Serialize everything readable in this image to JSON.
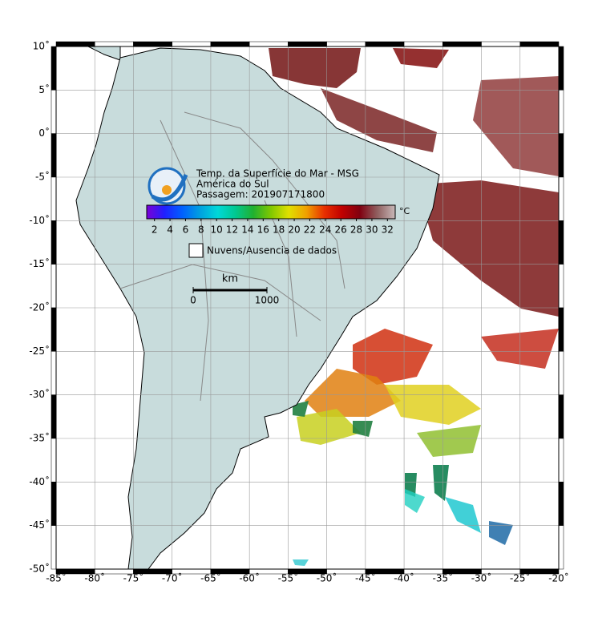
{
  "map": {
    "title_lines": [
      "Temp. da Superfície do Mar - MSG",
      "América do Sul",
      "Passagem: 201907171800"
    ],
    "colorbar": {
      "unit": "°C",
      "lim": [
        1,
        33
      ],
      "ticks": [
        2,
        4,
        6,
        8,
        10,
        12,
        14,
        16,
        18,
        20,
        22,
        24,
        26,
        28,
        30,
        32
      ],
      "colors": [
        "#7a00d6",
        "#2020ff",
        "#0060ff",
        "#00a0e0",
        "#00d8d8",
        "#00c890",
        "#20b030",
        "#80c800",
        "#e0e000",
        "#f0a000",
        "#e83000",
        "#c00000",
        "#800010",
        "#906060",
        "#c8b8b8"
      ]
    },
    "legend": "Nuvens/Ausencia de dados",
    "scale": {
      "unit": "km",
      "ticks": [
        0,
        1000
      ]
    },
    "lon_lim": [
      -85,
      -20
    ],
    "lat_lim": [
      -50,
      10
    ],
    "lon_ticks": [
      {
        "value": -85,
        "label": "-85˚"
      },
      {
        "value": -80,
        "label": "-80˚"
      },
      {
        "value": -75,
        "label": "-75˚"
      },
      {
        "value": -70,
        "label": "-70˚"
      },
      {
        "value": -65,
        "label": "-65˚"
      },
      {
        "value": -60,
        "label": "-60˚"
      },
      {
        "value": -55,
        "label": "-55˚"
      },
      {
        "value": -50,
        "label": "-50˚"
      },
      {
        "value": -45,
        "label": "-45˚"
      },
      {
        "value": -40,
        "label": "-40˚"
      },
      {
        "value": -35,
        "label": "-35˚"
      },
      {
        "value": -30,
        "label": "-30˚"
      },
      {
        "value": -25,
        "label": "-25˚"
      },
      {
        "value": -20,
        "label": "-20˚"
      }
    ],
    "lat_ticks": [
      {
        "value": 10,
        "label": "10˚"
      },
      {
        "value": 5,
        "label": "5˚"
      },
      {
        "value": 0,
        "label": "0˚"
      },
      {
        "value": -5,
        "label": "-5˚"
      },
      {
        "value": -10,
        "label": "-10˚"
      },
      {
        "value": -15,
        "label": "-15˚"
      },
      {
        "value": -20,
        "label": "-20˚"
      },
      {
        "value": -25,
        "label": "-25˚"
      },
      {
        "value": -30,
        "label": "-30˚"
      },
      {
        "value": -35,
        "label": "-35˚"
      },
      {
        "value": -40,
        "label": "-40˚"
      },
      {
        "value": -45,
        "label": "-45˚"
      },
      {
        "value": -50,
        "label": "-50˚"
      }
    ]
  }
}
